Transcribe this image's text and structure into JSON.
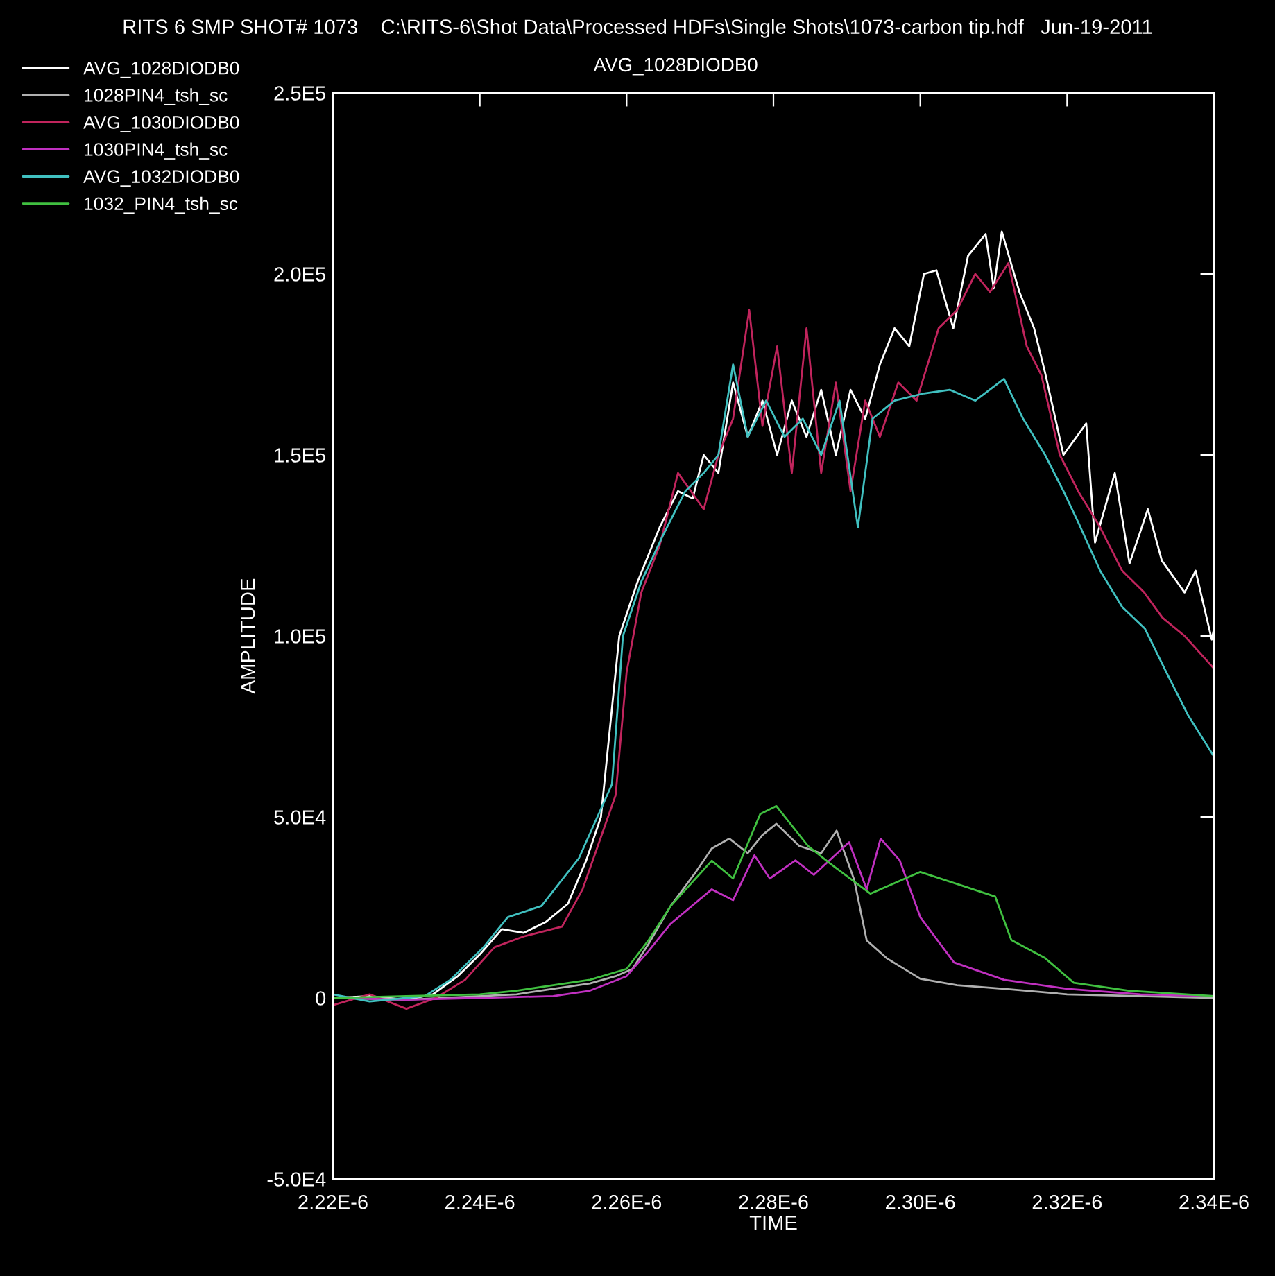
{
  "chart_data": {
    "type": "line",
    "title": "RITS 6 SMP SHOT# 1073    C:\\RITS-6\\Shot Data\\Processed HDFs\\Single Shots\\1073-carbon tip.hdf   Jun-19-2011",
    "subtitle": "AVG_1028DIODB0",
    "xlabel": "TIME",
    "ylabel": "AMPLITUDE",
    "xlim": [
      2.22e-06,
      2.34e-06
    ],
    "xticks": [
      {
        "value": 2.22e-06,
        "label": "2.22E-6"
      },
      {
        "value": 2.24e-06,
        "label": "2.24E-6"
      },
      {
        "value": 2.26e-06,
        "label": "2.26E-6"
      },
      {
        "value": 2.28e-06,
        "label": "2.28E-6"
      },
      {
        "value": 2.3e-06,
        "label": "2.30E-6"
      },
      {
        "value": 2.32e-06,
        "label": "2.32E-6"
      },
      {
        "value": 2.34e-06,
        "label": "2.34E-6"
      }
    ],
    "ylim": [
      -50000,
      250000
    ],
    "yticks": [
      {
        "value": -50000,
        "label": "-5.0E4"
      },
      0,
      {
        "value": 50000,
        "label": "5.0E4"
      },
      {
        "value": 100000,
        "label": "1.0E5"
      },
      {
        "value": 150000,
        "label": "1.5E5"
      },
      {
        "value": 200000,
        "label": "2.0E5"
      },
      {
        "value": 250000,
        "label": "2.5E5"
      }
    ],
    "grid": false,
    "legend": "top left",
    "line_style": "solid",
    "marker": "none",
    "series": [
      {
        "name": "AVG_1028DIODB0",
        "color": "#ffffff",
        "x": [
          2.22e-06,
          2.225e-06,
          2.23e-06,
          2.2336e-06,
          2.237e-06,
          2.24e-06,
          2.243e-06,
          2.246e-06,
          2.249e-06,
          2.252e-06,
          2.2545e-06,
          2.2565e-06,
          2.2575e-06,
          2.259e-06,
          2.2615e-06,
          2.2645e-06,
          2.267e-06,
          2.269e-06,
          2.2705e-06,
          2.2725e-06,
          2.2745e-06,
          2.2765e-06,
          2.2785e-06,
          2.2805e-06,
          2.2825e-06,
          2.2845e-06,
          2.2865e-06,
          2.2885e-06,
          2.2905e-06,
          2.2925e-06,
          2.2945e-06,
          2.2965e-06,
          2.2985e-06,
          2.3005e-06,
          2.3022e-06,
          2.3045e-06,
          2.3065e-06,
          2.3089e-06,
          2.31e-06,
          2.3111e-06,
          2.3135e-06,
          2.3155e-06,
          2.317e-06,
          2.3195e-06,
          2.3226e-06,
          2.3238e-06,
          2.3265e-06,
          2.3285e-06,
          2.331e-06,
          2.3329e-06,
          2.336e-06,
          2.3375e-06,
          2.3397e-06,
          2.34e-06
        ],
        "values": [
          0,
          500,
          -500,
          1000,
          6000,
          12000,
          19000,
          18000,
          21000,
          26000,
          38000,
          50000,
          70000,
          100000,
          115000,
          130000,
          140000,
          138000,
          150000,
          145000,
          170000,
          155000,
          165000,
          150000,
          165000,
          155000,
          168000,
          150000,
          168000,
          160000,
          175000,
          185000,
          180000,
          200000,
          201000,
          185000,
          205000,
          211000,
          196000,
          211700,
          195000,
          185000,
          172700,
          150000,
          158700,
          125800,
          145000,
          120000,
          135000,
          120800,
          112000,
          118000,
          99000,
          102000
        ]
      },
      {
        "name": "1028PIN4_tsh_sc",
        "color": "#b0b0b0",
        "x": [
          2.22e-06,
          2.23e-06,
          2.24e-06,
          2.245e-06,
          2.25e-06,
          2.255e-06,
          2.2585e-06,
          2.2608e-06,
          2.263e-06,
          2.266e-06,
          2.2695e-06,
          2.2716e-06,
          2.274e-06,
          2.2765e-06,
          2.2785e-06,
          2.2804e-06,
          2.2835e-06,
          2.2865e-06,
          2.2886e-06,
          2.291e-06,
          2.2927e-06,
          2.2954e-06,
          2.3e-06,
          2.305e-06,
          2.3114e-06,
          2.32e-06,
          2.33e-06,
          2.34e-06
        ],
        "values": [
          0,
          -500,
          500,
          1000,
          2500,
          4000,
          6000,
          8000,
          15000,
          25400,
          35000,
          41300,
          44000,
          40000,
          45000,
          48100,
          42000,
          40000,
          46200,
          32600,
          15900,
          11000,
          5300,
          3500,
          2500,
          1000,
          500,
          0
        ]
      },
      {
        "name": "AVG_1030DIODB0",
        "color": "#c0245c",
        "x": [
          2.22e-06,
          2.225e-06,
          2.23e-06,
          2.234e-06,
          2.238e-06,
          2.242e-06,
          2.246e-06,
          2.2512e-06,
          2.254e-06,
          2.2585e-06,
          2.26e-06,
          2.262e-06,
          2.2645e-06,
          2.267e-06,
          2.2705e-06,
          2.2725e-06,
          2.2745e-06,
          2.2767e-06,
          2.2785e-06,
          2.2805e-06,
          2.2825e-06,
          2.2845e-06,
          2.2865e-06,
          2.2885e-06,
          2.2905e-06,
          2.2925e-06,
          2.2945e-06,
          2.297e-06,
          2.2995e-06,
          2.3025e-06,
          2.305e-06,
          2.3075e-06,
          2.3095e-06,
          2.312e-06,
          2.3145e-06,
          2.3165e-06,
          2.319e-06,
          2.3215e-06,
          2.3245e-06,
          2.3275e-06,
          2.3305e-06,
          2.333e-06,
          2.336e-06,
          2.34e-06
        ],
        "values": [
          -2000,
          1000,
          -3000,
          0,
          5000,
          14000,
          17000,
          19700,
          30000,
          56000,
          90000,
          112000,
          125000,
          145000,
          135000,
          150000,
          160000,
          190000,
          158000,
          180000,
          145000,
          185000,
          145000,
          170000,
          140000,
          165000,
          155000,
          170000,
          165000,
          185000,
          190000,
          200000,
          195000,
          203000,
          180000,
          172000,
          150000,
          140000,
          130000,
          118000,
          112000,
          105000,
          100000,
          91000
        ]
      },
      {
        "name": "1030PIN4_tsh_sc",
        "color": "#c030c0",
        "x": [
          2.22e-06,
          2.23e-06,
          2.24e-06,
          2.25e-06,
          2.255e-06,
          2.26e-06,
          2.263e-06,
          2.266e-06,
          2.2716e-06,
          2.2745e-06,
          2.2774e-06,
          2.2795e-06,
          2.283e-06,
          2.2855e-06,
          2.2903e-06,
          2.2927e-06,
          2.2946e-06,
          2.2972e-06,
          2.3e-06,
          2.3046e-06,
          2.3114e-06,
          2.32e-06,
          2.33e-06,
          2.34e-06
        ],
        "values": [
          0,
          -500,
          0,
          500,
          2000,
          6000,
          13000,
          20500,
          30000,
          27000,
          39400,
          33000,
          38000,
          34000,
          43000,
          30000,
          44000,
          38000,
          22300,
          9800,
          5000,
          2500,
          1000,
          500
        ]
      },
      {
        "name": "AVG_1032DIODB0",
        "color": "#40c0c0",
        "x": [
          2.22e-06,
          2.225e-06,
          2.23e-06,
          2.2325e-06,
          2.236e-06,
          2.2405e-06,
          2.2438e-06,
          2.2484e-06,
          2.2535e-06,
          2.258e-06,
          2.2595e-06,
          2.262e-06,
          2.265e-06,
          2.268e-06,
          2.2705e-06,
          2.2725e-06,
          2.2745e-06,
          2.2765e-06,
          2.279e-06,
          2.2815e-06,
          2.284e-06,
          2.2865e-06,
          2.289e-06,
          2.2915e-06,
          2.2935e-06,
          2.2965e-06,
          2.3005e-06,
          2.304e-06,
          2.3075e-06,
          2.3114e-06,
          2.314e-06,
          2.317e-06,
          2.3195e-06,
          2.3216e-06,
          2.3245e-06,
          2.3275e-06,
          2.3306e-06,
          2.3335e-06,
          2.3365e-06,
          2.34e-06
        ],
        "values": [
          1000,
          -1000,
          0,
          500,
          5000,
          14000,
          22300,
          25400,
          38600,
          59000,
          100000,
          115000,
          128000,
          140000,
          145000,
          150000,
          175000,
          155000,
          165000,
          155000,
          160000,
          150000,
          165000,
          130000,
          160000,
          165000,
          167000,
          168000,
          165000,
          171000,
          160000,
          150000,
          140000,
          131000,
          118000,
          108000,
          102000,
          90000,
          78000,
          66700
        ]
      },
      {
        "name": "1032_PIN4_tsh_sc",
        "color": "#40c040",
        "x": [
          2.22e-06,
          2.23e-06,
          2.24e-06,
          2.245e-06,
          2.25e-06,
          2.255e-06,
          2.26e-06,
          2.263e-06,
          2.266e-06,
          2.2716e-06,
          2.2745e-06,
          2.2782e-06,
          2.2804e-06,
          2.2847e-06,
          2.2878e-06,
          2.2932e-06,
          2.3e-06,
          2.3057e-06,
          2.3102e-06,
          2.3124e-06,
          2.317e-06,
          2.3209e-06,
          2.3284e-06,
          2.34e-06
        ],
        "values": [
          0,
          500,
          1000,
          2000,
          3500,
          5000,
          8000,
          16000,
          25400,
          37900,
          33000,
          50800,
          53000,
          42000,
          37000,
          28800,
          34800,
          31000,
          28000,
          16000,
          11000,
          4200,
          2000,
          500
        ]
      }
    ]
  }
}
